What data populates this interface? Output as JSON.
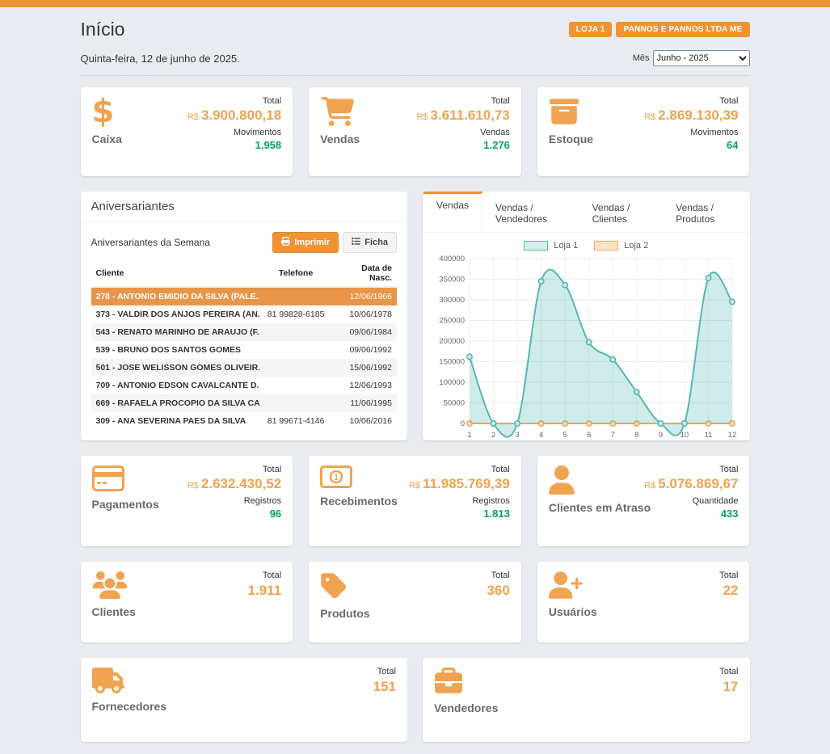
{
  "colors": {
    "brand_orange": "#ef9334",
    "accent_orange": "#f0a351",
    "positive_green": "#00a65a",
    "highlight_row": "#e9964a",
    "page_bg": "#e9edf1"
  },
  "page": {
    "title": "Início",
    "date_line": "Quinta-feira, 12 de junho de 2025.",
    "month_label": "Mês",
    "month_value": "Junho - 2025"
  },
  "header_badges": [
    {
      "label": "LOJA 1"
    },
    {
      "label": "PANNOS E PANNOS LTDA ME"
    }
  ],
  "cards": {
    "caixa": {
      "name": "Caixa",
      "icon": "dollar-icon",
      "total_label": "Total",
      "currency": "R$",
      "total": "3.900.800,18",
      "sub_label": "Movimentos",
      "sub_value": "1.958"
    },
    "vendas": {
      "name": "Vendas",
      "icon": "cart-icon",
      "total_label": "Total",
      "currency": "R$",
      "total": "3.611.610,73",
      "sub_label": "Vendas",
      "sub_value": "1.276"
    },
    "estoque": {
      "name": "Estoque",
      "icon": "box-icon",
      "total_label": "Total",
      "currency": "R$",
      "total": "2.869.130,39",
      "sub_label": "Movimentos",
      "sub_value": "64"
    },
    "pagamentos": {
      "name": "Pagamentos",
      "icon": "credit-card-icon",
      "total_label": "Total",
      "currency": "R$",
      "total": "2.632.430,52",
      "sub_label": "Registros",
      "sub_value": "96"
    },
    "recebimentos": {
      "name": "Recebimentos",
      "icon": "money-bill-icon",
      "total_label": "Total",
      "currency": "R$",
      "total": "11.985.769,39",
      "sub_label": "Registros",
      "sub_value": "1.813"
    },
    "clientes_em_atraso": {
      "name": "Clientes em Atraso",
      "icon": "user-icon",
      "total_label": "Total",
      "currency": "R$",
      "total": "5.076.869,67",
      "sub_label": "Quantidade",
      "sub_value": "433"
    },
    "clientes": {
      "name": "Clientes",
      "icon": "users-icon",
      "total_label": "Total",
      "total": "1.911"
    },
    "produtos": {
      "name": "Produtos",
      "icon": "tag-icon",
      "total_label": "Total",
      "total": "360"
    },
    "usuarios": {
      "name": "Usuários",
      "icon": "user-plus-icon",
      "total_label": "Total",
      "total": "22"
    },
    "fornecedores": {
      "name": "Fornecedores",
      "icon": "truck-icon",
      "total_label": "Total",
      "total": "151"
    },
    "vendedores": {
      "name": "Vendedores",
      "icon": "briefcase-icon",
      "total_label": "Total",
      "total": "17"
    }
  },
  "birthdays": {
    "panel_title": "Aniversariantes",
    "subtitle": "Aniversariantes da Semana",
    "print_button": "Imprimir",
    "ficha_button": "Ficha",
    "columns": [
      "Cliente",
      "Telefone",
      "Data de Nasc."
    ],
    "rows": [
      {
        "client": "278 - ANTONIO EMIDIO DA SILVA (PALE...",
        "phone": "",
        "birth_date": "12/06/1966",
        "highlighted": true
      },
      {
        "client": "373 - VALDIR DOS ANJOS PEREIRA (AN...",
        "phone": "81 99828-6185",
        "birth_date": "10/06/1978",
        "highlighted": false
      },
      {
        "client": "543 - RENATO MARINHO DE ARAUJO (F...",
        "phone": "",
        "birth_date": "09/06/1984",
        "highlighted": false
      },
      {
        "client": "539 - BRUNO DOS SANTOS GOMES",
        "phone": "",
        "birth_date": "09/06/1992",
        "highlighted": false
      },
      {
        "client": "501 - JOSE WELISSON GOMES OLIVEIR...",
        "phone": "",
        "birth_date": "15/06/1992",
        "highlighted": false
      },
      {
        "client": "709 - ANTONIO EDSON CAVALCANTE D...",
        "phone": "",
        "birth_date": "12/06/1993",
        "highlighted": false
      },
      {
        "client": "669 - RAFAELA PROCOPIO DA SILVA CA...",
        "phone": "",
        "birth_date": "11/06/1995",
        "highlighted": false
      },
      {
        "client": "309 - ANA SEVERINA PAES DA SILVA",
        "phone": "81 99671-4146",
        "birth_date": "10/06/2016",
        "highlighted": false
      }
    ]
  },
  "chart_panel": {
    "tabs": [
      "Vendas",
      "Vendas / Vendedores",
      "Vendas / Clientes",
      "Vendas / Produtos"
    ],
    "active_index": 0
  },
  "chart_data": {
    "type": "area",
    "title": "Vendas",
    "x": [
      1,
      2,
      3,
      4,
      5,
      6,
      7,
      8,
      9,
      10,
      11,
      12
    ],
    "series": [
      {
        "name": "Loja 1",
        "color": "#52b9b0",
        "marker_fill": "#d6edea",
        "area_fill": true,
        "values": [
          162000,
          0,
          0,
          345000,
          336000,
          197000,
          155000,
          76000,
          0,
          0,
          353000,
          295000
        ]
      },
      {
        "name": "Loja 2",
        "color": "#f3a55b",
        "marker_fill": "#fbe3c6",
        "area_fill": false,
        "values": [
          0,
          0,
          0,
          0,
          0,
          0,
          0,
          0,
          0,
          0,
          0,
          0
        ]
      }
    ],
    "ylim": [
      0,
      400000
    ],
    "ytick_step": 50000,
    "grid": true,
    "legend_position": "top"
  }
}
